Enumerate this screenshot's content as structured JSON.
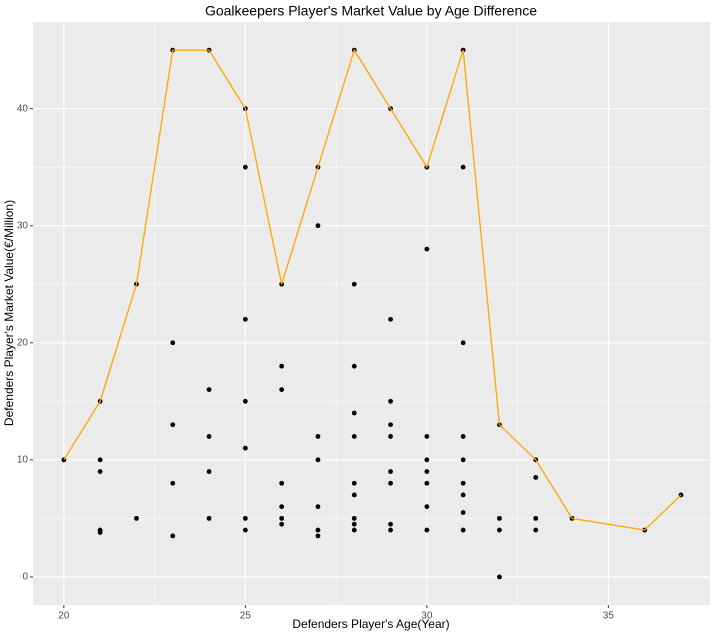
{
  "chart_data": {
    "type": "scatter",
    "title": "Goalkeepers Player's Market Value by Age Difference",
    "x_label": "Defenders Player's Age(Year)",
    "y_label": "Defenders Player's Market Value(€/Million)",
    "xlim": [
      19.15,
      37.8
    ],
    "ylim": [
      -2.4,
      47.4
    ],
    "xticks": [
      20,
      25,
      30,
      35
    ],
    "yticks": [
      0,
      10,
      20,
      30,
      40
    ],
    "grid": true,
    "series": [
      {
        "type": "scatter",
        "color": "#000000",
        "x": [
          20,
          21,
          21,
          21,
          21,
          21,
          22,
          22,
          23,
          23,
          23,
          23,
          23,
          24,
          24,
          24,
          24,
          24,
          25,
          25,
          25,
          25,
          25,
          25,
          25,
          26,
          26,
          26,
          26,
          26,
          26,
          26,
          27,
          27,
          27,
          27,
          27,
          27,
          27,
          28,
          28,
          28,
          28,
          28,
          28,
          28,
          28,
          28,
          28,
          29,
          29,
          29,
          29,
          29,
          29,
          29,
          29,
          29,
          30,
          30,
          30,
          30,
          30,
          30,
          30,
          30,
          31,
          31,
          31,
          31,
          31,
          31,
          31,
          31,
          31,
          32,
          32,
          32,
          32,
          33,
          33,
          33,
          33,
          34,
          36,
          37
        ],
        "values": [
          10,
          15,
          10,
          9,
          4,
          3.8,
          25,
          5,
          45,
          20,
          13,
          8,
          3.5,
          45,
          16,
          12,
          9,
          5,
          40,
          35,
          22,
          15,
          11,
          5,
          4,
          25,
          18,
          16,
          8,
          6,
          5,
          4.5,
          35,
          30,
          12,
          10,
          6,
          4,
          3.5,
          45,
          25,
          18,
          14,
          12,
          8,
          7,
          5,
          4.5,
          4,
          40,
          22,
          15,
          13,
          12,
          9,
          8,
          4.5,
          4,
          35,
          28,
          12,
          10,
          9,
          8,
          6,
          4,
          45,
          35,
          20,
          12,
          10,
          8,
          7,
          5.5,
          4,
          13,
          5,
          4,
          0,
          10,
          8.5,
          5,
          4,
          5,
          4,
          7
        ]
      },
      {
        "type": "line",
        "color": "#FFA500",
        "x": [
          20,
          21,
          22,
          23,
          24,
          25,
          26,
          27,
          28,
          29,
          30,
          31,
          32,
          33,
          34,
          36,
          37
        ],
        "values": [
          10,
          15,
          25,
          45,
          45,
          40,
          25,
          35,
          45,
          40,
          35,
          45,
          13,
          10,
          5,
          4,
          7
        ]
      }
    ]
  }
}
